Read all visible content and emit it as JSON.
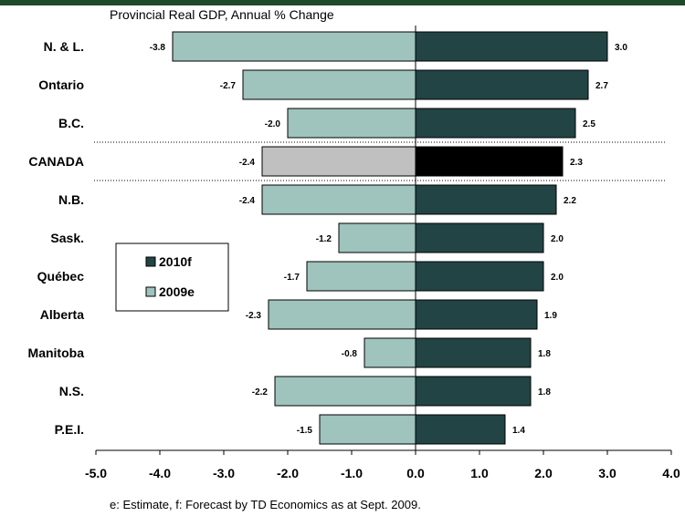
{
  "chart_data": {
    "type": "bar",
    "orientation": "horizontal",
    "title": "Provincial Real GDP, Annual % Change",
    "footnote": "e: Estimate, f: Forecast by TD Economics as at Sept. 2009.",
    "categories": [
      "N. & L.",
      "Ontario",
      "B.C.",
      "CANADA",
      "N.B.",
      "Sask.",
      "Québec",
      "Alberta",
      "Manitoba",
      "N.S.",
      "P.E.I."
    ],
    "series": [
      {
        "name": "2010f",
        "values": [
          3.0,
          2.7,
          2.5,
          2.3,
          2.2,
          2.0,
          2.0,
          1.9,
          1.8,
          1.8,
          1.4
        ]
      },
      {
        "name": "2009e",
        "values": [
          -3.8,
          -2.7,
          -2.0,
          -2.4,
          -2.4,
          -1.2,
          -1.7,
          -2.3,
          -0.8,
          -2.2,
          -1.5
        ]
      }
    ],
    "value_labels": {
      "2010f": [
        "3.0",
        "2.7",
        "2.5",
        "2.3",
        "2.2",
        "2.0",
        "2.0",
        "1.9",
        "1.8",
        "1.8",
        "1.4"
      ],
      "2009e": [
        "-3.8",
        "-2.7",
        "-2.0",
        "-2.4",
        "-2.4",
        "-1.2",
        "-1.7",
        "-2.3",
        "-0.8",
        "-2.2",
        "-1.5"
      ]
    },
    "xlim": [
      -5.0,
      4.0
    ],
    "xticks": [
      -5,
      -4,
      -3,
      -2,
      -1,
      0,
      1,
      2,
      3,
      4
    ],
    "xtick_labels": [
      "-5.0",
      "-4.0",
      "-3.0",
      "-2.0",
      "-1.0",
      "0.0",
      "1.0",
      "2.0",
      "3.0",
      "4.0"
    ],
    "highlight_category": "CANADA",
    "colors": {
      "2010f": "#224444",
      "2009e": "#9fc3bd",
      "highlight_2010f": "#000000",
      "highlight_2009e": "#c0c0c0",
      "top_bar": "#1f4a2a"
    },
    "legend_position": "left-middle",
    "grid": false
  }
}
